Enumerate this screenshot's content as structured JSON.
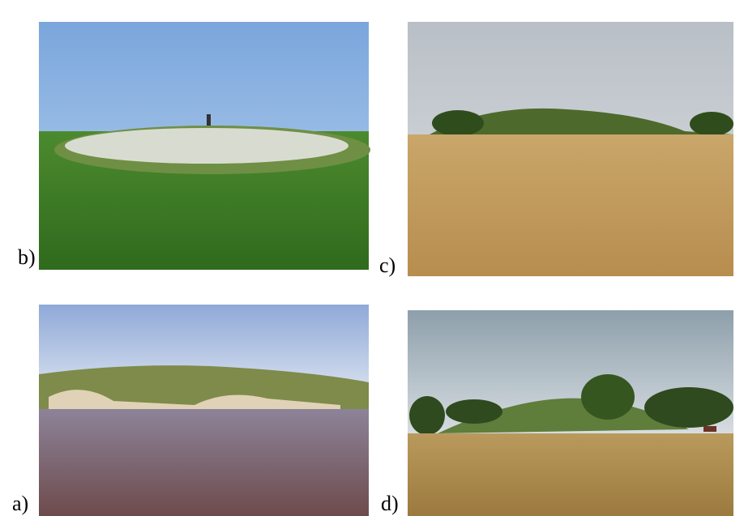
{
  "panels": [
    {
      "label": "b)"
    },
    {
      "label": "c)"
    },
    {
      "label": "a)"
    },
    {
      "label": "d)"
    }
  ]
}
